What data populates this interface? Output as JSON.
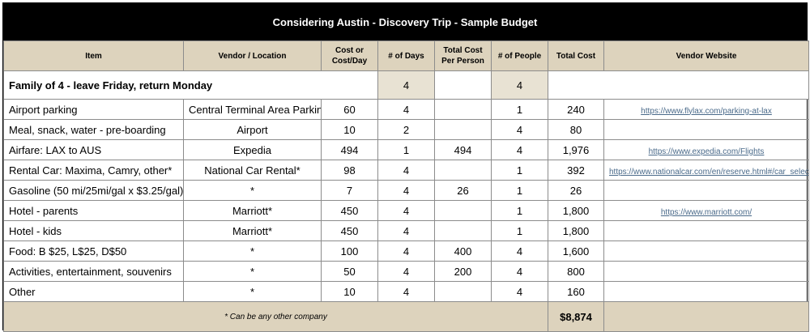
{
  "title": "Considering Austin - Discovery Trip - Sample Budget",
  "headers": {
    "item": "Item",
    "vendor": "Vendor / Location",
    "cost": "Cost or Cost/Day",
    "days": "# of Days",
    "per_person": "Total Cost Per Person",
    "people": "# of People",
    "total": "Total Cost",
    "website": "Vendor Website"
  },
  "group": {
    "label": "Family of 4 - leave Friday, return Monday",
    "days": "4",
    "people": "4"
  },
  "rows": [
    {
      "item": "Airport parking",
      "vendor": "Central Terminal Area Parking",
      "cost": "60",
      "days": "4",
      "per_person": "",
      "people": "1",
      "total": "240",
      "website": "https://www.flylax.com/parking-at-lax"
    },
    {
      "item": "Meal, snack, water - pre-boarding",
      "vendor": "Airport",
      "cost": "10",
      "days": "2",
      "per_person": "",
      "people": "4",
      "total": "80",
      "website": ""
    },
    {
      "item": "Airfare: LAX to AUS",
      "vendor": "Expedia",
      "cost": "494",
      "days": "1",
      "per_person": "494",
      "people": "4",
      "total": "1,976",
      "website": "https://www.expedia.com/Flights"
    },
    {
      "item": "Rental Car: Maxima, Camry, other*",
      "vendor": "National Car Rental*",
      "cost": "98",
      "days": "4",
      "per_person": "",
      "people": "1",
      "total": "392",
      "website": "https://www.nationalcar.com/en/reserve.html#/car_select"
    },
    {
      "item": "Gasoline (50 mi/25mi/gal x $3.25/gal)",
      "vendor": "*",
      "cost": "7",
      "days": "4",
      "per_person": "26",
      "people": "1",
      "total": "26",
      "website": ""
    },
    {
      "item": "Hotel - parents",
      "vendor": "Marriott*",
      "cost": "450",
      "days": "4",
      "per_person": "",
      "people": "1",
      "total": "1,800",
      "website": "https://www.marriott.com/"
    },
    {
      "item": "Hotel - kids",
      "vendor": "Marriott*",
      "cost": "450",
      "days": "4",
      "per_person": "",
      "people": "1",
      "total": "1,800",
      "website": ""
    },
    {
      "item": "Food: B $25, L$25, D$50",
      "vendor": "*",
      "cost": "100",
      "days": "4",
      "per_person": "400",
      "people": "4",
      "total": "1,600",
      "website": ""
    },
    {
      "item": "Activities, entertainment, souvenirs",
      "vendor": "*",
      "cost": "50",
      "days": "4",
      "per_person": "200",
      "people": "4",
      "total": "800",
      "website": ""
    },
    {
      "item": "Other",
      "vendor": "*",
      "cost": "10",
      "days": "4",
      "per_person": "",
      "people": "4",
      "total": "160",
      "website": ""
    }
  ],
  "footer": {
    "note": "* Can be any other company",
    "grand_total": "$8,874"
  }
}
